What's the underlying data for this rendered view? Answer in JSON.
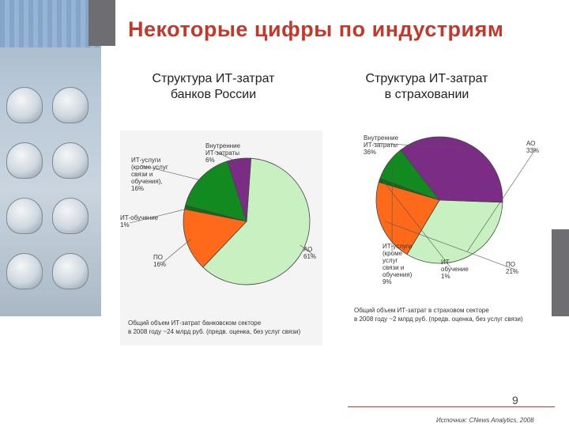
{
  "slide": {
    "title": "Некоторые цифры по индустриям",
    "page_number": "9",
    "source": "Источник: CNews Analytics, 2008"
  },
  "colors": {
    "title": "#c0392b",
    "ao": "#c8f0c0",
    "po": "#ff6a1a",
    "it_training": "#0b8a0b",
    "it_services": "#138a20",
    "internal": "#7b2d86"
  },
  "chart_data": [
    {
      "type": "pie",
      "title_lines": [
        "Структура ИТ-затрат",
        "банков России"
      ],
      "slices": [
        {
          "name": "АО",
          "value": 61,
          "label_lines": [
            "АО",
            "61%"
          ],
          "color": "#c8f0c0"
        },
        {
          "name": "ПО",
          "value": 16,
          "label_lines": [
            "ПО",
            "16%"
          ],
          "color": "#ff6a1a"
        },
        {
          "name": "ИТ-обучение",
          "value": 1,
          "label_lines": [
            "ИТ-обучение",
            "1%"
          ],
          "color": "#0b6f0b"
        },
        {
          "name": "ИТ-услуги (кроме услуг связи и обучения)",
          "value": 16,
          "label_lines": [
            "ИТ-услуги",
            "(кроме услуг",
            "связи и",
            "обучения),",
            "16%"
          ],
          "color": "#138a20"
        },
        {
          "name": "Внутренние ИТ-затраты",
          "value": 6,
          "label_lines": [
            "Внутренние",
            "ИТ-затраты",
            "6%"
          ],
          "color": "#7b2d86"
        }
      ],
      "note_lines": [
        "Общий объем ИТ-затрат банковском секторе",
        "в 2008 году ~24 млрд руб. (предв. оценка, без услуг связи)"
      ]
    },
    {
      "type": "pie",
      "title_lines": [
        "Структура ИТ-затрат",
        "в страховании"
      ],
      "slices": [
        {
          "name": "АО",
          "value": 33,
          "label_lines": [
            "АО",
            "33%"
          ],
          "color": "#c8f0c0"
        },
        {
          "name": "ПО",
          "value": 21,
          "label_lines": [
            "ПО",
            "21%"
          ],
          "color": "#ff6a1a"
        },
        {
          "name": "ИТ-обучение",
          "value": 1,
          "label_lines": [
            "ИТ-",
            "обучение",
            "1%"
          ],
          "color": "#0b6f0b"
        },
        {
          "name": "ИТ-услуги (кроме услуг связи и обучения)",
          "value": 9,
          "label_lines": [
            "ИТ-услуги",
            "(кроме",
            "услуг",
            "связи и",
            "обучения)",
            "9%"
          ],
          "color": "#138a20"
        },
        {
          "name": "Внутренние ИТ-затраты",
          "value": 36,
          "label_lines": [
            "Внутренние",
            "ИТ-затраты",
            "36%"
          ],
          "color": "#7b2d86"
        }
      ],
      "note_lines": [
        "Общий объем ИТ-затрат в страховом секторе",
        "в 2008 году ~2 млрд руб. (предв. оценка, без услуг связи)"
      ]
    }
  ]
}
